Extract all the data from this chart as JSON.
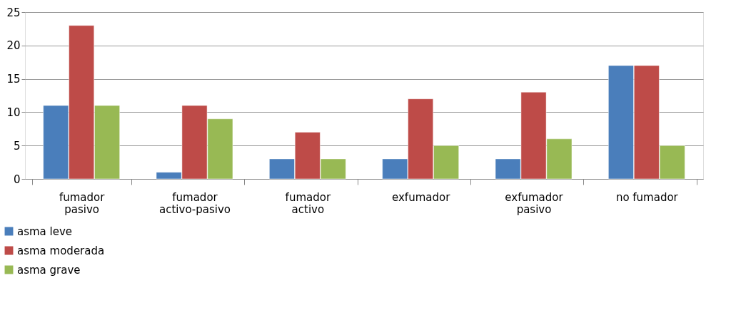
{
  "chart_data": {
    "type": "bar",
    "categories": [
      "fumador pasivo",
      "fumador activo-pasivo",
      "fumador activo",
      "exfumador",
      "exfumador pasivo",
      "no fumador"
    ],
    "series": [
      {
        "name": "asma leve",
        "color": "#4a7ebb",
        "values": [
          11,
          1,
          3,
          3,
          3,
          17
        ]
      },
      {
        "name": "asma moderada",
        "color": "#be4b48",
        "values": [
          23,
          11,
          7,
          12,
          13,
          17
        ]
      },
      {
        "name": "asma grave",
        "color": "#98b954",
        "values": [
          11,
          9,
          3,
          5,
          6,
          5
        ]
      }
    ],
    "ylim": [
      0,
      25
    ],
    "yticks": [
      0,
      5,
      10,
      15,
      20,
      25
    ],
    "grid": "y",
    "legend": "bottom left"
  }
}
